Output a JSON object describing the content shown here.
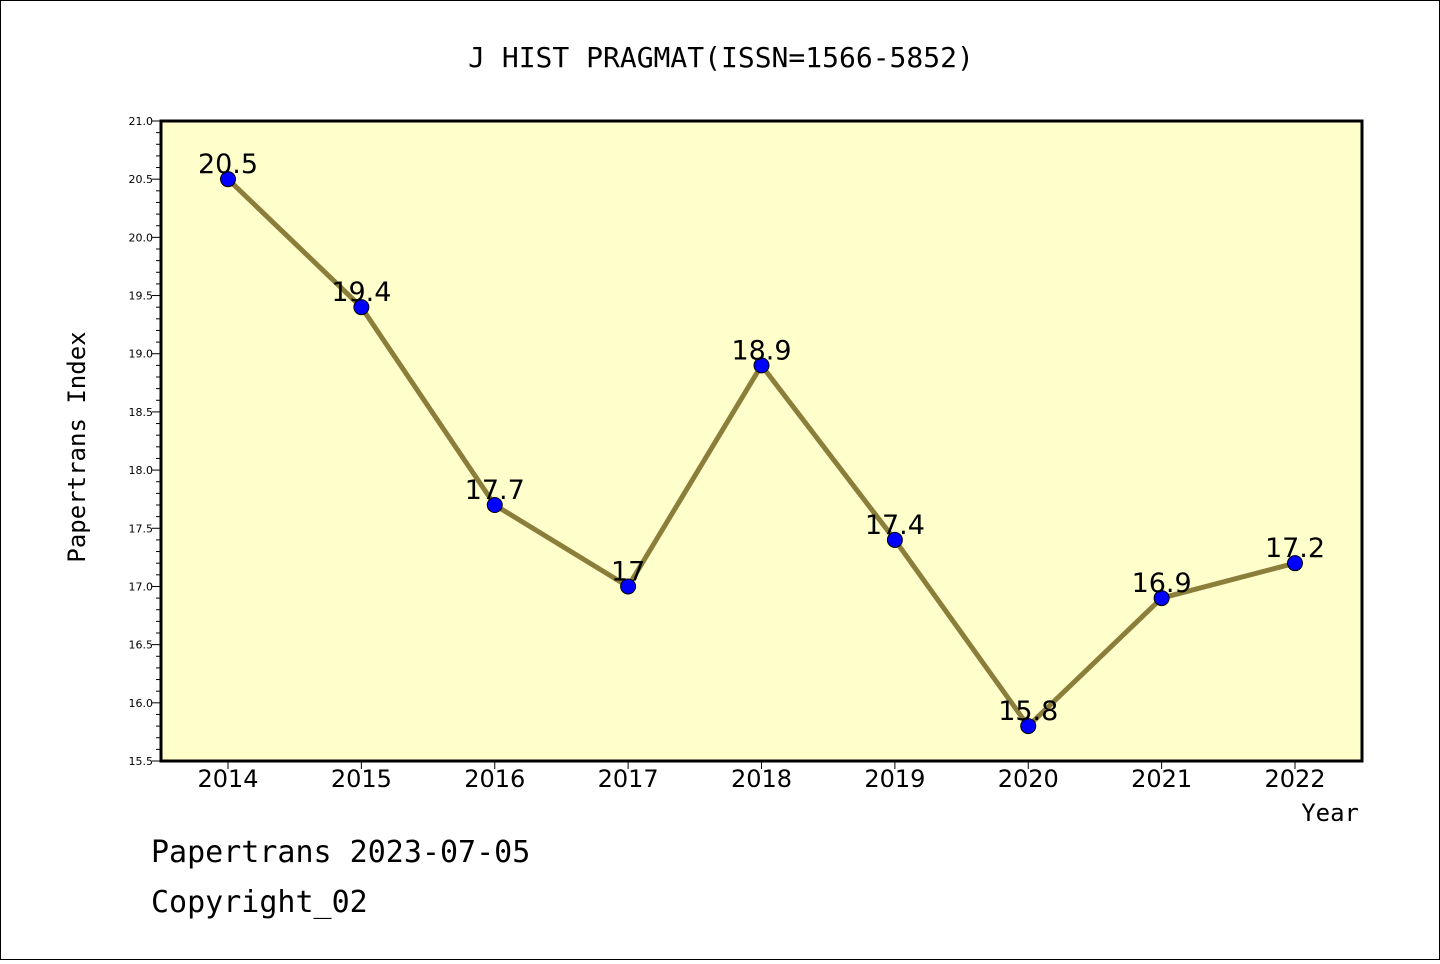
{
  "chart_data": {
    "type": "line",
    "title": "J HIST PRAGMAT(ISSN=1566-5852)",
    "xlabel": "Year",
    "ylabel": "Papertrans Index",
    "categories": [
      "2014",
      "2015",
      "2016",
      "2017",
      "2018",
      "2019",
      "2020",
      "2021",
      "2022"
    ],
    "values": [
      20.5,
      19.4,
      17.7,
      17.0,
      18.9,
      17.4,
      15.8,
      16.9,
      17.2
    ],
    "data_labels": [
      "20.5",
      "19.4",
      "17.7",
      "17",
      "18.9",
      "17.4",
      "15.8",
      "16.9",
      "17.2"
    ],
    "ylim": [
      15.5,
      21.0
    ],
    "y_ticks": [
      "15.5",
      "16.0",
      "16.5",
      "17.0",
      "17.5",
      "18.0",
      "18.5",
      "19.0",
      "19.5",
      "20.0",
      "20.5",
      "21.0"
    ],
    "grid": false,
    "legend": "none",
    "colors": {
      "line": "#8b7d3a",
      "marker": "#0000ff",
      "plot_background": "#ffffcc"
    }
  },
  "footer": {
    "line1": "Papertrans 2023-07-05",
    "line2": "Copyright_02"
  }
}
